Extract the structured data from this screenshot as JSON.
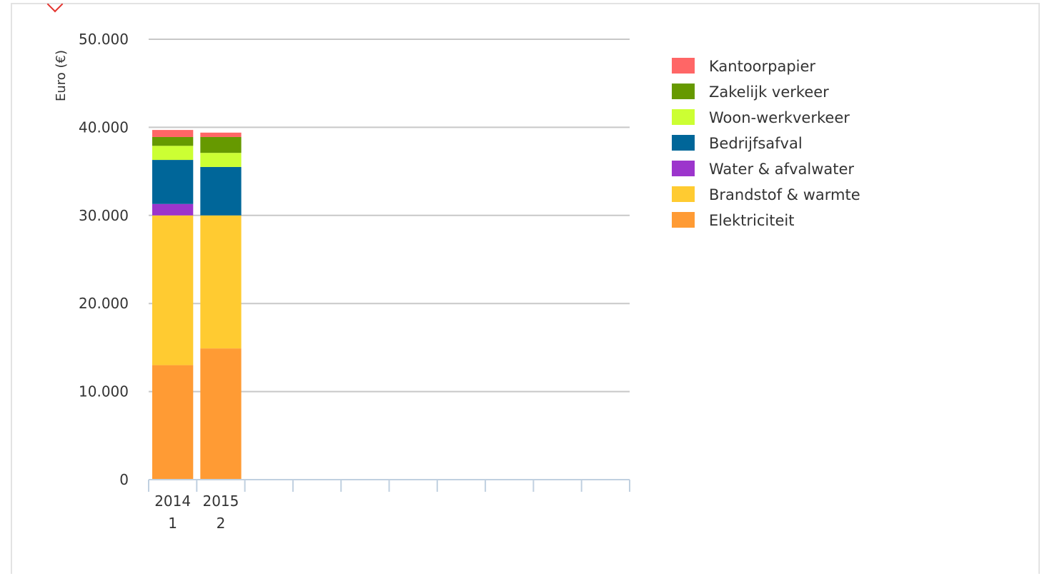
{
  "chart_data": {
    "type": "bar",
    "stacked": true,
    "title": "",
    "xlabel": "",
    "ylabel": "Euro (€)",
    "ylim": [
      0,
      50000
    ],
    "yticks": [
      0,
      10000,
      20000,
      30000,
      40000,
      50000
    ],
    "ytick_labels": [
      "0",
      "10.000",
      "20.000",
      "30.000",
      "40.000",
      "50.000"
    ],
    "category_slots": 10,
    "categories": [
      [
        "2014",
        "1"
      ],
      [
        "2015",
        "2"
      ]
    ],
    "grid": true,
    "legend_position": "right",
    "series": [
      {
        "name": "Elektriciteit",
        "color": "#ff9b34",
        "values": [
          13000,
          14900
        ]
      },
      {
        "name": "Brandstof & warmte",
        "color": "#ffcb31",
        "values": [
          17000,
          15100
        ]
      },
      {
        "name": "Water & afvalwater",
        "color": "#9c35cc",
        "values": [
          1300,
          0
        ]
      },
      {
        "name": "Bedrijfsafval",
        "color": "#006699",
        "values": [
          5000,
          5500
        ]
      },
      {
        "name": "Woon-werkverkeer",
        "color": "#ccff33",
        "values": [
          1600,
          1600
        ]
      },
      {
        "name": "Zakelijk verkeer",
        "color": "#669900",
        "values": [
          1000,
          1800
        ]
      },
      {
        "name": "Kantoorpapier",
        "color": "#ff6666",
        "values": [
          800,
          500
        ]
      }
    ]
  }
}
